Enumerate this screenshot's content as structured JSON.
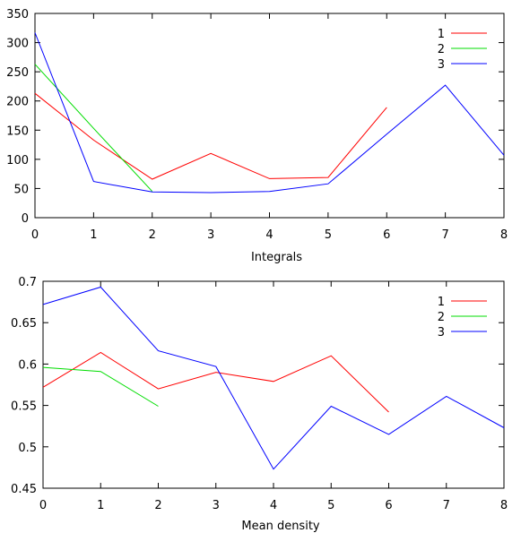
{
  "chart_data": [
    {
      "type": "line",
      "title": "",
      "xlabel": "Integrals",
      "ylabel": "",
      "xlim": [
        0,
        8
      ],
      "ylim": [
        0,
        350
      ],
      "xticks": [
        0,
        1,
        2,
        3,
        4,
        5,
        6,
        7,
        8
      ],
      "yticks": [
        0,
        50,
        100,
        150,
        200,
        250,
        300,
        350
      ],
      "grid": false,
      "legend_position": "top-right",
      "series": [
        {
          "name": "1",
          "color": "#ff0000",
          "x": [
            0,
            1,
            2,
            3,
            4,
            5,
            6
          ],
          "y": [
            213,
            133,
            66,
            110,
            67,
            69,
            189
          ]
        },
        {
          "name": "2",
          "color": "#00dd00",
          "x": [
            0,
            1,
            2
          ],
          "y": [
            263,
            153,
            45
          ]
        },
        {
          "name": "3",
          "color": "#0000ff",
          "x": [
            0,
            1,
            2,
            3,
            4,
            5,
            6,
            7,
            8
          ],
          "y": [
            317,
            62,
            44,
            43,
            45,
            58,
            143,
            227,
            107
          ]
        }
      ]
    },
    {
      "type": "line",
      "title": "",
      "xlabel": "Mean density",
      "ylabel": "",
      "xlim": [
        0,
        8
      ],
      "ylim": [
        0.45,
        0.7
      ],
      "xticks": [
        0,
        1,
        2,
        3,
        4,
        5,
        6,
        7,
        8
      ],
      "yticks": [
        0.45,
        0.5,
        0.55,
        0.6,
        0.65,
        0.7
      ],
      "grid": false,
      "legend_position": "top-right",
      "series": [
        {
          "name": "1",
          "color": "#ff0000",
          "x": [
            0,
            1,
            2,
            3,
            4,
            5,
            6
          ],
          "y": [
            0.572,
            0.614,
            0.57,
            0.59,
            0.579,
            0.61,
            0.542
          ]
        },
        {
          "name": "2",
          "color": "#00dd00",
          "x": [
            0,
            1,
            2
          ],
          "y": [
            0.596,
            0.591,
            0.549
          ]
        },
        {
          "name": "3",
          "color": "#0000ff",
          "x": [
            0,
            1,
            2,
            3,
            4,
            5,
            6,
            7,
            8
          ],
          "y": [
            0.672,
            0.693,
            0.616,
            0.597,
            0.473,
            0.549,
            0.515,
            0.561,
            0.523
          ]
        }
      ]
    }
  ]
}
